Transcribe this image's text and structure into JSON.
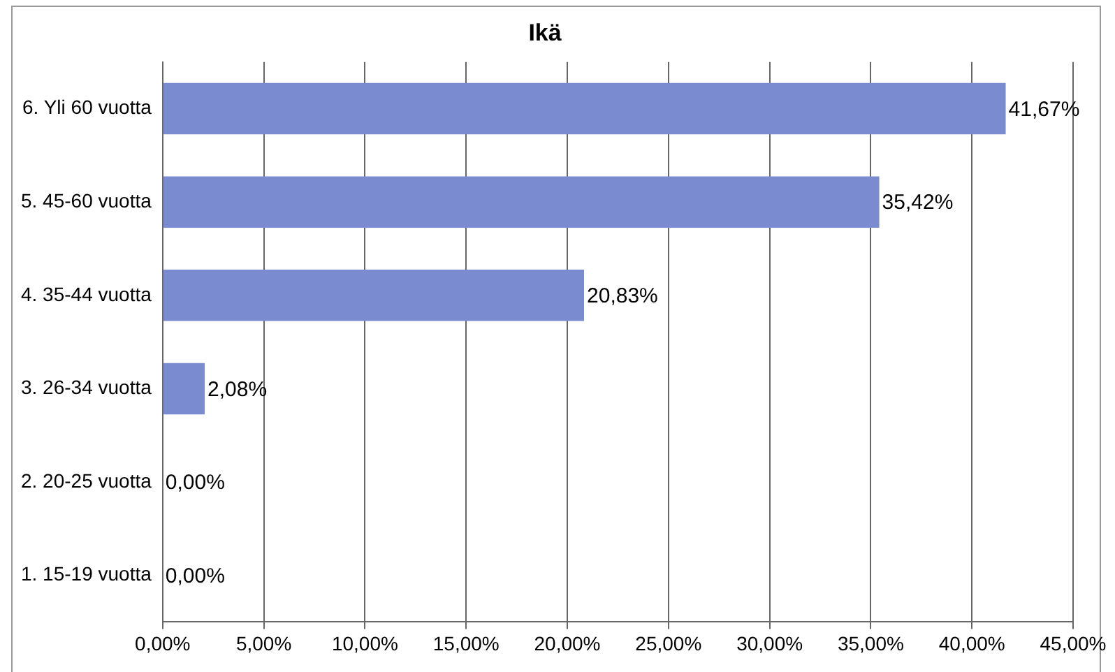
{
  "chart_data": {
    "type": "bar",
    "orientation": "horizontal",
    "title": "Ikä",
    "categories": [
      "6. Yli 60 vuotta",
      "5. 45-60 vuotta",
      "4. 35-44 vuotta",
      "3. 26-34 vuotta",
      "2. 20-25 vuotta",
      "1. 15-19 vuotta"
    ],
    "values": [
      41.67,
      35.42,
      20.83,
      2.08,
      0,
      0
    ],
    "value_labels": [
      "41,67%",
      "35,42%",
      "20,83%",
      "2,08%",
      "0,00%",
      "0,00%"
    ],
    "color": "#7b8bd0",
    "xlim": [
      0,
      45
    ],
    "xticks": [
      {
        "value": 0,
        "label": "0,00%"
      },
      {
        "value": 5,
        "label": "5,00%"
      },
      {
        "value": 10,
        "label": "10,00%"
      },
      {
        "value": 15,
        "label": "15,00%"
      },
      {
        "value": 20,
        "label": "20,00%"
      },
      {
        "value": 25,
        "label": "25,00%"
      },
      {
        "value": 30,
        "label": "30,00%"
      },
      {
        "value": 35,
        "label": "35,00%"
      },
      {
        "value": 40,
        "label": "40,00%"
      },
      {
        "value": 45,
        "label": "45,00%"
      }
    ],
    "grid": "x",
    "legend": false
  }
}
